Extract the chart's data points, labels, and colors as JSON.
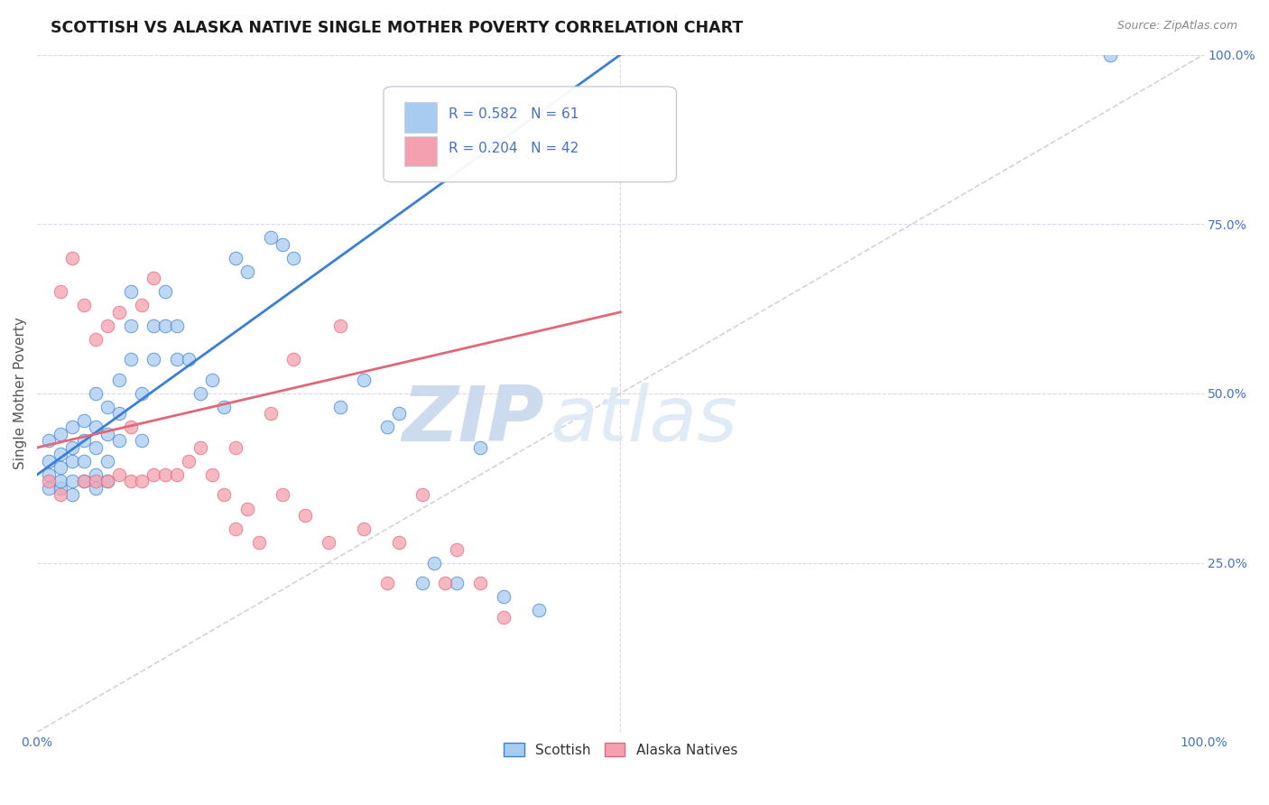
{
  "title": "SCOTTISH VS ALASKA NATIVE SINGLE MOTHER POVERTY CORRELATION CHART",
  "source": "Source: ZipAtlas.com",
  "ylabel": "Single Mother Poverty",
  "xlim": [
    0,
    1
  ],
  "ylim": [
    0,
    1
  ],
  "scottish_R": 0.582,
  "scottish_N": 61,
  "alaska_R": 0.204,
  "alaska_N": 42,
  "scottish_color": "#a8ccf0",
  "alaska_color": "#f5a0b0",
  "scottish_line_color": "#3a7fd5",
  "alaska_line_color": "#e06878",
  "diagonal_color": "#c0c0d0",
  "legend_label_scottish": "Scottish",
  "legend_label_alaska": "Alaska Natives",
  "watermark_zip": "ZIP",
  "watermark_atlas": "atlas",
  "watermark_color": "#dce8f5",
  "background_color": "#ffffff",
  "grid_color": "#d8d8e8",
  "scottish_x": [
    0.01,
    0.01,
    0.01,
    0.01,
    0.02,
    0.02,
    0.02,
    0.02,
    0.02,
    0.03,
    0.03,
    0.03,
    0.03,
    0.03,
    0.04,
    0.04,
    0.04,
    0.04,
    0.05,
    0.05,
    0.05,
    0.05,
    0.05,
    0.06,
    0.06,
    0.06,
    0.06,
    0.07,
    0.07,
    0.07,
    0.08,
    0.08,
    0.08,
    0.09,
    0.09,
    0.1,
    0.1,
    0.11,
    0.11,
    0.12,
    0.12,
    0.13,
    0.14,
    0.15,
    0.16,
    0.17,
    0.18,
    0.2,
    0.21,
    0.22,
    0.26,
    0.28,
    0.3,
    0.31,
    0.33,
    0.34,
    0.36,
    0.38,
    0.4,
    0.43,
    0.92
  ],
  "scottish_y": [
    0.36,
    0.38,
    0.4,
    0.43,
    0.36,
    0.37,
    0.39,
    0.41,
    0.44,
    0.35,
    0.37,
    0.4,
    0.42,
    0.45,
    0.37,
    0.4,
    0.43,
    0.46,
    0.36,
    0.38,
    0.42,
    0.45,
    0.5,
    0.37,
    0.4,
    0.44,
    0.48,
    0.43,
    0.47,
    0.52,
    0.55,
    0.6,
    0.65,
    0.43,
    0.5,
    0.55,
    0.6,
    0.6,
    0.65,
    0.55,
    0.6,
    0.55,
    0.5,
    0.52,
    0.48,
    0.7,
    0.68,
    0.73,
    0.72,
    0.7,
    0.48,
    0.52,
    0.45,
    0.47,
    0.22,
    0.25,
    0.22,
    0.42,
    0.2,
    0.18,
    1.0
  ],
  "alaska_x": [
    0.01,
    0.02,
    0.02,
    0.03,
    0.04,
    0.04,
    0.05,
    0.05,
    0.06,
    0.06,
    0.07,
    0.07,
    0.08,
    0.08,
    0.09,
    0.09,
    0.1,
    0.1,
    0.11,
    0.12,
    0.13,
    0.14,
    0.15,
    0.16,
    0.17,
    0.17,
    0.18,
    0.19,
    0.2,
    0.21,
    0.22,
    0.23,
    0.25,
    0.26,
    0.28,
    0.3,
    0.31,
    0.33,
    0.35,
    0.36,
    0.38,
    0.4
  ],
  "alaska_y": [
    0.37,
    0.35,
    0.65,
    0.7,
    0.63,
    0.37,
    0.58,
    0.37,
    0.6,
    0.37,
    0.62,
    0.38,
    0.45,
    0.37,
    0.63,
    0.37,
    0.67,
    0.38,
    0.38,
    0.38,
    0.4,
    0.42,
    0.38,
    0.35,
    0.42,
    0.3,
    0.33,
    0.28,
    0.47,
    0.35,
    0.55,
    0.32,
    0.28,
    0.6,
    0.3,
    0.22,
    0.28,
    0.35,
    0.22,
    0.27,
    0.22,
    0.17
  ],
  "scottish_line_x0": 0.0,
  "scottish_line_y0": 0.38,
  "scottish_line_x1": 0.5,
  "scottish_line_y1": 1.0,
  "alaska_line_x0": 0.0,
  "alaska_line_y0": 0.42,
  "alaska_line_x1": 0.5,
  "alaska_line_y1": 0.62,
  "tick_color": "#4472c4",
  "title_color": "#1a1a1a",
  "ylabel_color": "#555555",
  "source_color": "#888888"
}
